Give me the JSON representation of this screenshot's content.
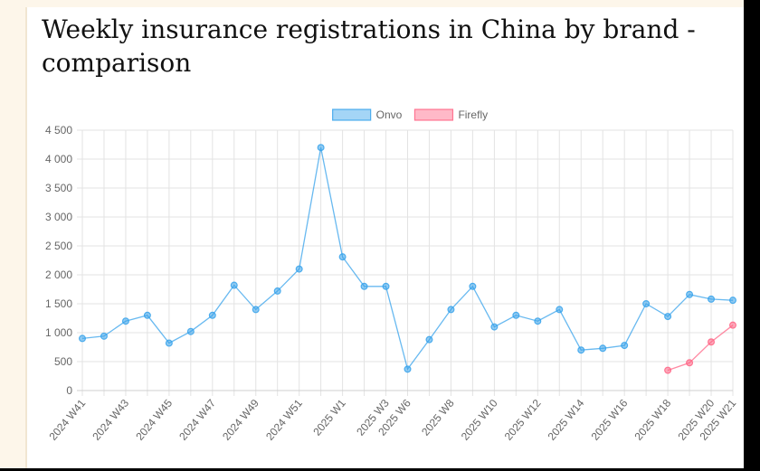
{
  "page": {
    "title": "Weekly insurance registrations in China by brand - comparison"
  },
  "chart_data": {
    "type": "line",
    "title": "Weekly insurance registrations in China by brand - comparison",
    "xlabel": "",
    "ylabel": "",
    "ylim": [
      0,
      4500
    ],
    "yticks": [
      0,
      500,
      1000,
      1500,
      2000,
      2500,
      3000,
      3500,
      4000,
      4500
    ],
    "ytick_labels": [
      "0",
      "500",
      "1 000",
      "1 500",
      "2 000",
      "2 500",
      "3 000",
      "3 500",
      "4 000",
      "4 500"
    ],
    "grid": true,
    "legend_position": "top",
    "categories": [
      "2024 W41",
      "2024 W42",
      "2024 W43",
      "2024 W44",
      "2024 W45",
      "2024 W46",
      "2024 W47",
      "2024 W48",
      "2024 W49",
      "2024 W50",
      "2024 W51",
      "2024 W52",
      "2025 W1",
      "2025 W2",
      "2025 W3",
      "2025 W6",
      "2025 W7",
      "2025 W8",
      "2025 W9",
      "2025 W10",
      "2025 W11",
      "2025 W12",
      "2025 W13",
      "2025 W14",
      "2025 W15",
      "2025 W16",
      "2025 W17",
      "2025 W18",
      "2025 W19",
      "2025 W20",
      "2025 W21"
    ],
    "shown_tick_labels": [
      "2024 W41",
      "2024 W43",
      "2024 W45",
      "2024 W47",
      "2024 W49",
      "2024 W51",
      "2025 W1",
      "2025 W3",
      "2025 W6",
      "2025 W8",
      "2025 W10",
      "2025 W12",
      "2025 W14",
      "2025 W16",
      "2025 W18",
      "2025 W20",
      "2025 W21"
    ],
    "series": [
      {
        "name": "Onvo",
        "color": "#36a2eb",
        "values": [
          900,
          940,
          1200,
          1300,
          820,
          1020,
          1300,
          1820,
          1400,
          1720,
          2100,
          4200,
          2310,
          1800,
          1800,
          370,
          880,
          1400,
          1800,
          1100,
          1300,
          1200,
          1400,
          700,
          730,
          780,
          1500,
          1280,
          1660,
          1580,
          1560
        ]
      },
      {
        "name": "Firefly",
        "color": "#ff6384",
        "values": [
          null,
          null,
          null,
          null,
          null,
          null,
          null,
          null,
          null,
          null,
          null,
          null,
          null,
          null,
          null,
          null,
          null,
          null,
          null,
          null,
          null,
          null,
          null,
          null,
          null,
          null,
          null,
          350,
          480,
          840,
          1130
        ]
      }
    ]
  }
}
